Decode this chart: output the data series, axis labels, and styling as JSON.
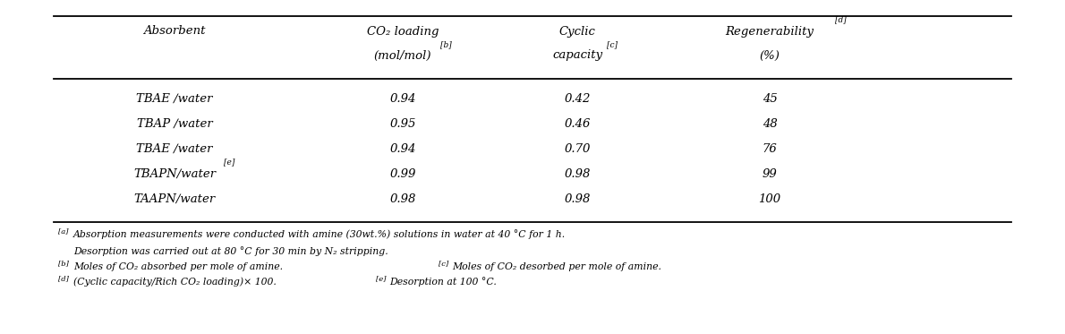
{
  "rows": [
    [
      "TBAE ∕water",
      "0.94",
      "0.42",
      "45"
    ],
    [
      "TBAP ∕water",
      "0.95",
      "0.46",
      "48"
    ],
    [
      "TBAE ∕water",
      "0.94",
      "0.70",
      "76"
    ],
    [
      "TBAPN∕water",
      "0.99",
      "0.98",
      "99"
    ],
    [
      "TAAPN∕water",
      "0.98",
      "0.98",
      "100"
    ]
  ],
  "row_superscripts": [
    "",
    "",
    "",
    "[e]",
    ""
  ],
  "background_color": "#ffffff",
  "text_color": "#000000",
  "font_size": 9.5,
  "footnote_font_size": 7.8,
  "sup_font_size": 6.5
}
